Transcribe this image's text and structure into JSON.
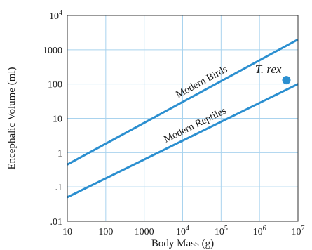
{
  "chart_data": {
    "type": "line",
    "xlabel": "Body Mass (g)",
    "ylabel": "Encephalic Volume (ml)",
    "xscale": "log",
    "yscale": "log",
    "xlim": [
      10,
      10000000
    ],
    "ylim": [
      0.01,
      10000
    ],
    "grid": true,
    "x_ticks": [
      {
        "value": 10,
        "label": "10"
      },
      {
        "value": 100,
        "label": "100"
      },
      {
        "value": 1000,
        "label": "1000"
      },
      {
        "value": 10000,
        "label": "10",
        "exp": "4"
      },
      {
        "value": 100000,
        "label": "10",
        "exp": "5"
      },
      {
        "value": 1000000,
        "label": "10",
        "exp": "6"
      },
      {
        "value": 10000000,
        "label": "10",
        "exp": "7"
      }
    ],
    "y_ticks": [
      {
        "value": 0.01,
        "label": ".01"
      },
      {
        "value": 0.1,
        "label": ".1"
      },
      {
        "value": 1,
        "label": "1"
      },
      {
        "value": 10,
        "label": "10"
      },
      {
        "value": 100,
        "label": "100"
      },
      {
        "value": 1000,
        "label": "1000"
      },
      {
        "value": 10000,
        "label": "10",
        "exp": "4"
      }
    ],
    "series": [
      {
        "name": "Modern Birds",
        "color": "#2b8fd0",
        "x": [
          10,
          10000000
        ],
        "y": [
          0.45,
          2000
        ]
      },
      {
        "name": "Modern Reptiles",
        "color": "#2b8fd0",
        "x": [
          10,
          10000000
        ],
        "y": [
          0.05,
          100
        ]
      }
    ],
    "points": [
      {
        "name": "T. rex",
        "color": "#2b8fd0",
        "x": 5000000,
        "y": 130
      }
    ]
  }
}
